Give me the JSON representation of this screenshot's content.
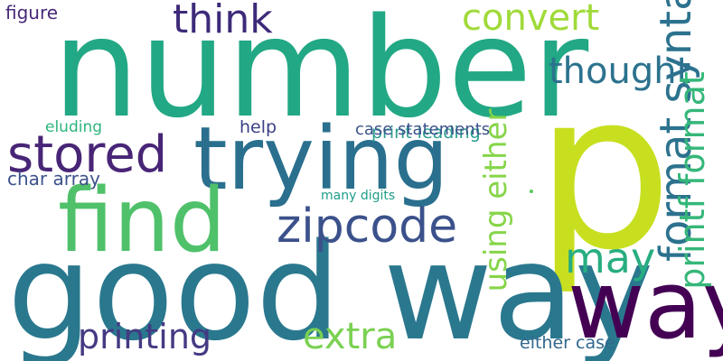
{
  "words": [
    {
      "text": "number",
      "color": "#22a884"
    },
    {
      "text": "p",
      "color": "#c8df20"
    },
    {
      "text": "good way",
      "color": "#2a788e"
    },
    {
      "text": "trying",
      "color": "#2a6f8e"
    },
    {
      "text": "find",
      "color": "#4fc16a"
    },
    {
      "text": "way",
      "color": "#440154"
    },
    {
      "text": "stored",
      "color": "#482576"
    },
    {
      "text": "zipcode",
      "color": "#3b518b"
    },
    {
      "text": "printing",
      "color": "#443a83"
    },
    {
      "text": "extra",
      "color": "#7ad151"
    },
    {
      "text": "convert",
      "color": "#a0da39"
    },
    {
      "text": "think",
      "color": "#3e2a79"
    },
    {
      "text": "thought",
      "color": "#2c728e"
    },
    {
      "text": "may",
      "color": "#2c728e"
    },
    {
      "text": "figure",
      "color": "#27ad81"
    },
    {
      "text": "eluding",
      "color": "#35b779"
    },
    {
      "text": "help",
      "color": "#86d549"
    },
    {
      "text": "print leading",
      "color": "#482878"
    },
    {
      "text": "char array",
      "color": "#2fb47c"
    },
    {
      "text": "many digits",
      "color": "#3b3f85"
    },
    {
      "text": "either case",
      "color": "#2a9d8f"
    },
    {
      "text": "case statements",
      "color": "#3b528b"
    },
    {
      "text": "format syntax",
      "color": "#5ec962"
    },
    {
      "text": "printf format",
      "color": "#1f9e89"
    },
    {
      "text": "using either",
      "color": "#31688e"
    },
    {
      "text": "•",
      "color": "#3b528b"
    }
  ]
}
